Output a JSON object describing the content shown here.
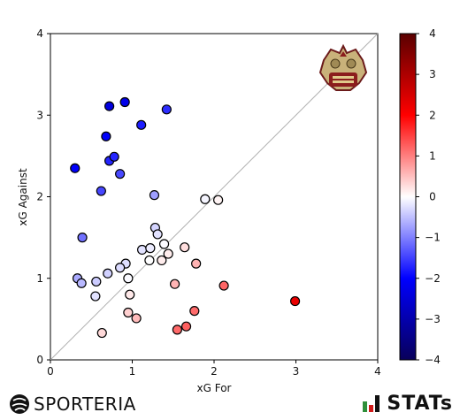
{
  "chart_data": {
    "type": "scatter",
    "title": "",
    "xlabel": "xG For",
    "ylabel": "xG Against",
    "xlim": [
      0,
      4
    ],
    "ylim": [
      0,
      4
    ],
    "x_ticks": [
      "0",
      "1",
      "2",
      "3",
      "4"
    ],
    "y_ticks": [
      "0",
      "1",
      "2",
      "3",
      "4"
    ],
    "reference_line": "diagonal",
    "grid": false,
    "colorbar": {
      "range": [
        -4,
        4
      ],
      "ticks": [
        "4",
        "3",
        "2",
        "1",
        "0",
        "−1",
        "−2",
        "−3",
        "−4"
      ],
      "colors": [
        "#08005a",
        "#0000ff",
        "#ffffff",
        "#ff0000",
        "#5a0000"
      ]
    },
    "points": [
      {
        "x": 0.3,
        "y": 2.35,
        "c": -2.05
      },
      {
        "x": 0.62,
        "y": 2.07,
        "c": -1.45
      },
      {
        "x": 0.72,
        "y": 3.11,
        "c": -2.39
      },
      {
        "x": 0.91,
        "y": 3.16,
        "c": -2.25
      },
      {
        "x": 0.68,
        "y": 2.74,
        "c": -2.06
      },
      {
        "x": 0.72,
        "y": 2.44,
        "c": -1.72
      },
      {
        "x": 0.78,
        "y": 2.49,
        "c": -1.71
      },
      {
        "x": 0.85,
        "y": 2.28,
        "c": -1.43
      },
      {
        "x": 1.11,
        "y": 2.88,
        "c": -1.77
      },
      {
        "x": 1.42,
        "y": 3.07,
        "c": -1.65
      },
      {
        "x": 0.39,
        "y": 1.5,
        "c": -1.11
      },
      {
        "x": 1.27,
        "y": 2.02,
        "c": -0.75
      },
      {
        "x": 1.28,
        "y": 1.62,
        "c": -0.34
      },
      {
        "x": 1.31,
        "y": 1.54,
        "c": -0.23
      },
      {
        "x": 1.12,
        "y": 1.35,
        "c": -0.23
      },
      {
        "x": 1.22,
        "y": 1.37,
        "c": -0.15
      },
      {
        "x": 1.39,
        "y": 1.42,
        "c": -0.03
      },
      {
        "x": 1.21,
        "y": 1.22,
        "c": -0.01
      },
      {
        "x": 0.92,
        "y": 1.18,
        "c": -0.26
      },
      {
        "x": 0.85,
        "y": 1.13,
        "c": -0.28
      },
      {
        "x": 0.7,
        "y": 1.06,
        "c": -0.36
      },
      {
        "x": 0.33,
        "y": 1.0,
        "c": -0.67
      },
      {
        "x": 0.38,
        "y": 0.94,
        "c": -0.56
      },
      {
        "x": 0.56,
        "y": 0.96,
        "c": -0.4
      },
      {
        "x": 0.55,
        "y": 0.78,
        "c": -0.23
      },
      {
        "x": 0.95,
        "y": 1.0,
        "c": -0.05
      },
      {
        "x": 1.89,
        "y": 1.97,
        "c": -0.08
      },
      {
        "x": 2.05,
        "y": 1.96,
        "c": 0.09
      },
      {
        "x": 1.36,
        "y": 1.22,
        "c": 0.14
      },
      {
        "x": 1.44,
        "y": 1.3,
        "c": 0.14
      },
      {
        "x": 1.64,
        "y": 1.38,
        "c": 0.26
      },
      {
        "x": 1.78,
        "y": 1.18,
        "c": 0.6
      },
      {
        "x": 0.97,
        "y": 0.8,
        "c": 0.17
      },
      {
        "x": 1.52,
        "y": 0.93,
        "c": 0.59
      },
      {
        "x": 2.12,
        "y": 0.91,
        "c": 1.21
      },
      {
        "x": 0.95,
        "y": 0.58,
        "c": 0.37
      },
      {
        "x": 1.05,
        "y": 0.51,
        "c": 0.54
      },
      {
        "x": 1.76,
        "y": 0.6,
        "c": 1.16
      },
      {
        "x": 0.63,
        "y": 0.33,
        "c": 0.3
      },
      {
        "x": 1.55,
        "y": 0.37,
        "c": 1.18
      },
      {
        "x": 1.66,
        "y": 0.41,
        "c": 1.25
      },
      {
        "x": 2.99,
        "y": 0.72,
        "c": 2.27
      }
    ]
  },
  "logos": {
    "team_crest": "team-crest-icon",
    "left_brand": "SPORTERIA",
    "left_icon": "sporteria-ball-icon",
    "right_brand": "STATs",
    "right_icon": "stats-bars-icon"
  }
}
